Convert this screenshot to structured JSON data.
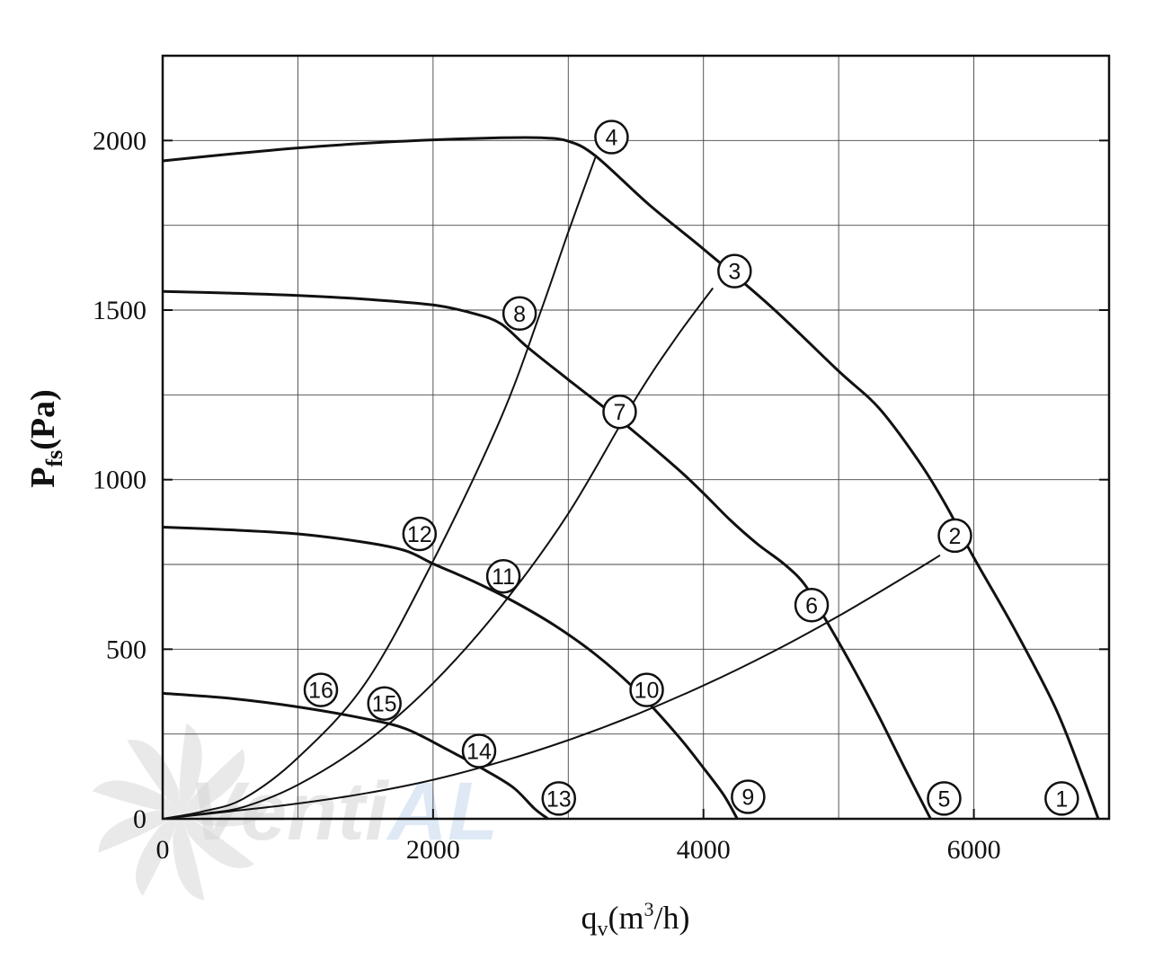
{
  "chart_data": {
    "type": "line",
    "title": "",
    "xlabel": {
      "base": "q",
      "sub": "v",
      "unit_open": "(m",
      "unit_sup": "3",
      "unit_close": "/h)"
    },
    "ylabel": {
      "base": "P",
      "sub": "fs",
      "unit": "(Pa)"
    },
    "xlim": [
      0,
      7000
    ],
    "ylim": [
      0,
      2250
    ],
    "x_ticks": [
      0,
      2000,
      4000,
      6000
    ],
    "x_tick_labels": [
      "0",
      "2000",
      "4000",
      "6000"
    ],
    "y_ticks": [
      0,
      500,
      1000,
      1500,
      2000
    ],
    "y_tick_labels": [
      "0",
      "500",
      "1000",
      "1500",
      "2000"
    ],
    "grid": true,
    "grid_x_step": 1000,
    "grid_y_step": 250,
    "fan_curves": [
      {
        "points": [
          [
            0,
            1940
          ],
          [
            500,
            1960
          ],
          [
            1000,
            1978
          ],
          [
            1500,
            1992
          ],
          [
            2000,
            2002
          ],
          [
            2500,
            2008
          ],
          [
            2800,
            2008
          ],
          [
            3000,
            1998
          ],
          [
            3200,
            1955
          ],
          [
            3600,
            1810
          ],
          [
            4000,
            1680
          ],
          [
            4500,
            1510
          ],
          [
            5000,
            1320
          ],
          [
            5300,
            1210
          ],
          [
            5600,
            1050
          ],
          [
            5800,
            920
          ],
          [
            6000,
            770
          ],
          [
            6300,
            560
          ],
          [
            6600,
            330
          ],
          [
            6800,
            130
          ],
          [
            6920,
            0
          ]
        ]
      },
      {
        "points": [
          [
            0,
            1555
          ],
          [
            500,
            1550
          ],
          [
            1000,
            1543
          ],
          [
            1500,
            1532
          ],
          [
            2000,
            1515
          ],
          [
            2300,
            1490
          ],
          [
            2500,
            1460
          ],
          [
            2700,
            1390
          ],
          [
            3000,
            1295
          ],
          [
            3400,
            1170
          ],
          [
            3800,
            1035
          ],
          [
            4000,
            960
          ],
          [
            4200,
            880
          ],
          [
            4400,
            810
          ],
          [
            4600,
            750
          ],
          [
            4750,
            690
          ],
          [
            4900,
            590
          ],
          [
            5100,
            450
          ],
          [
            5300,
            300
          ],
          [
            5500,
            140
          ],
          [
            5680,
            0
          ]
        ]
      },
      {
        "points": [
          [
            0,
            860
          ],
          [
            500,
            852
          ],
          [
            1000,
            840
          ],
          [
            1500,
            815
          ],
          [
            1800,
            790
          ],
          [
            2000,
            752
          ],
          [
            2300,
            700
          ],
          [
            2600,
            640
          ],
          [
            2900,
            570
          ],
          [
            3200,
            485
          ],
          [
            3500,
            380
          ],
          [
            3800,
            250
          ],
          [
            4000,
            150
          ],
          [
            4150,
            70
          ],
          [
            4250,
            0
          ]
        ]
      },
      {
        "points": [
          [
            0,
            370
          ],
          [
            500,
            355
          ],
          [
            1000,
            330
          ],
          [
            1500,
            295
          ],
          [
            1800,
            265
          ],
          [
            2100,
            205
          ],
          [
            2400,
            140
          ],
          [
            2600,
            90
          ],
          [
            2750,
            30
          ],
          [
            2850,
            0
          ]
        ]
      }
    ],
    "system_curves": [
      {
        "points": [
          [
            0,
            0
          ],
          [
            500,
            22
          ],
          [
            1000,
            45
          ],
          [
            1500,
            75
          ],
          [
            2000,
            115
          ],
          [
            2500,
            168
          ],
          [
            3000,
            232
          ],
          [
            3500,
            307
          ],
          [
            4000,
            393
          ],
          [
            4500,
            490
          ],
          [
            5000,
            598
          ],
          [
            5500,
            716
          ],
          [
            5750,
            777
          ]
        ]
      },
      {
        "points": [
          [
            0,
            0
          ],
          [
            300,
            15
          ],
          [
            600,
            35
          ],
          [
            1000,
            100
          ],
          [
            1500,
            225
          ],
          [
            2000,
            400
          ],
          [
            2500,
            625
          ],
          [
            3000,
            900
          ],
          [
            3500,
            1240
          ],
          [
            3800,
            1420
          ],
          [
            4070,
            1565
          ]
        ]
      },
      {
        "points": [
          [
            0,
            0
          ],
          [
            300,
            22
          ],
          [
            600,
            60
          ],
          [
            1000,
            180
          ],
          [
            1500,
            400
          ],
          [
            2000,
            760
          ],
          [
            2500,
            1180
          ],
          [
            2800,
            1500
          ],
          [
            3000,
            1730
          ],
          [
            3200,
            1950
          ]
        ]
      }
    ],
    "callouts": [
      {
        "label": "1",
        "x": 6650,
        "y": 60
      },
      {
        "label": "2",
        "x": 5860,
        "y": 835
      },
      {
        "label": "3",
        "x": 4230,
        "y": 1615
      },
      {
        "label": "4",
        "x": 3320,
        "y": 2010
      },
      {
        "label": "5",
        "x": 5780,
        "y": 60
      },
      {
        "label": "6",
        "x": 4800,
        "y": 630
      },
      {
        "label": "7",
        "x": 3380,
        "y": 1200
      },
      {
        "label": "8",
        "x": 2640,
        "y": 1490
      },
      {
        "label": "9",
        "x": 4330,
        "y": 65
      },
      {
        "label": "10",
        "x": 3580,
        "y": 380
      },
      {
        "label": "11",
        "x": 2520,
        "y": 715
      },
      {
        "label": "12",
        "x": 1900,
        "y": 840
      },
      {
        "label": "13",
        "x": 2930,
        "y": 60
      },
      {
        "label": "14",
        "x": 2340,
        "y": 200
      },
      {
        "label": "15",
        "x": 1640,
        "y": 340
      },
      {
        "label": "16",
        "x": 1170,
        "y": 380
      }
    ]
  },
  "watermark": {
    "text_primary": "Venti",
    "text_accent": "AL",
    "primary_color": "#d8d8d8",
    "accent_color": "#c9dcef",
    "icon": "fan-blades-icon"
  },
  "colors": {
    "line": "#111111",
    "grid": "#444444",
    "background": "#ffffff"
  }
}
